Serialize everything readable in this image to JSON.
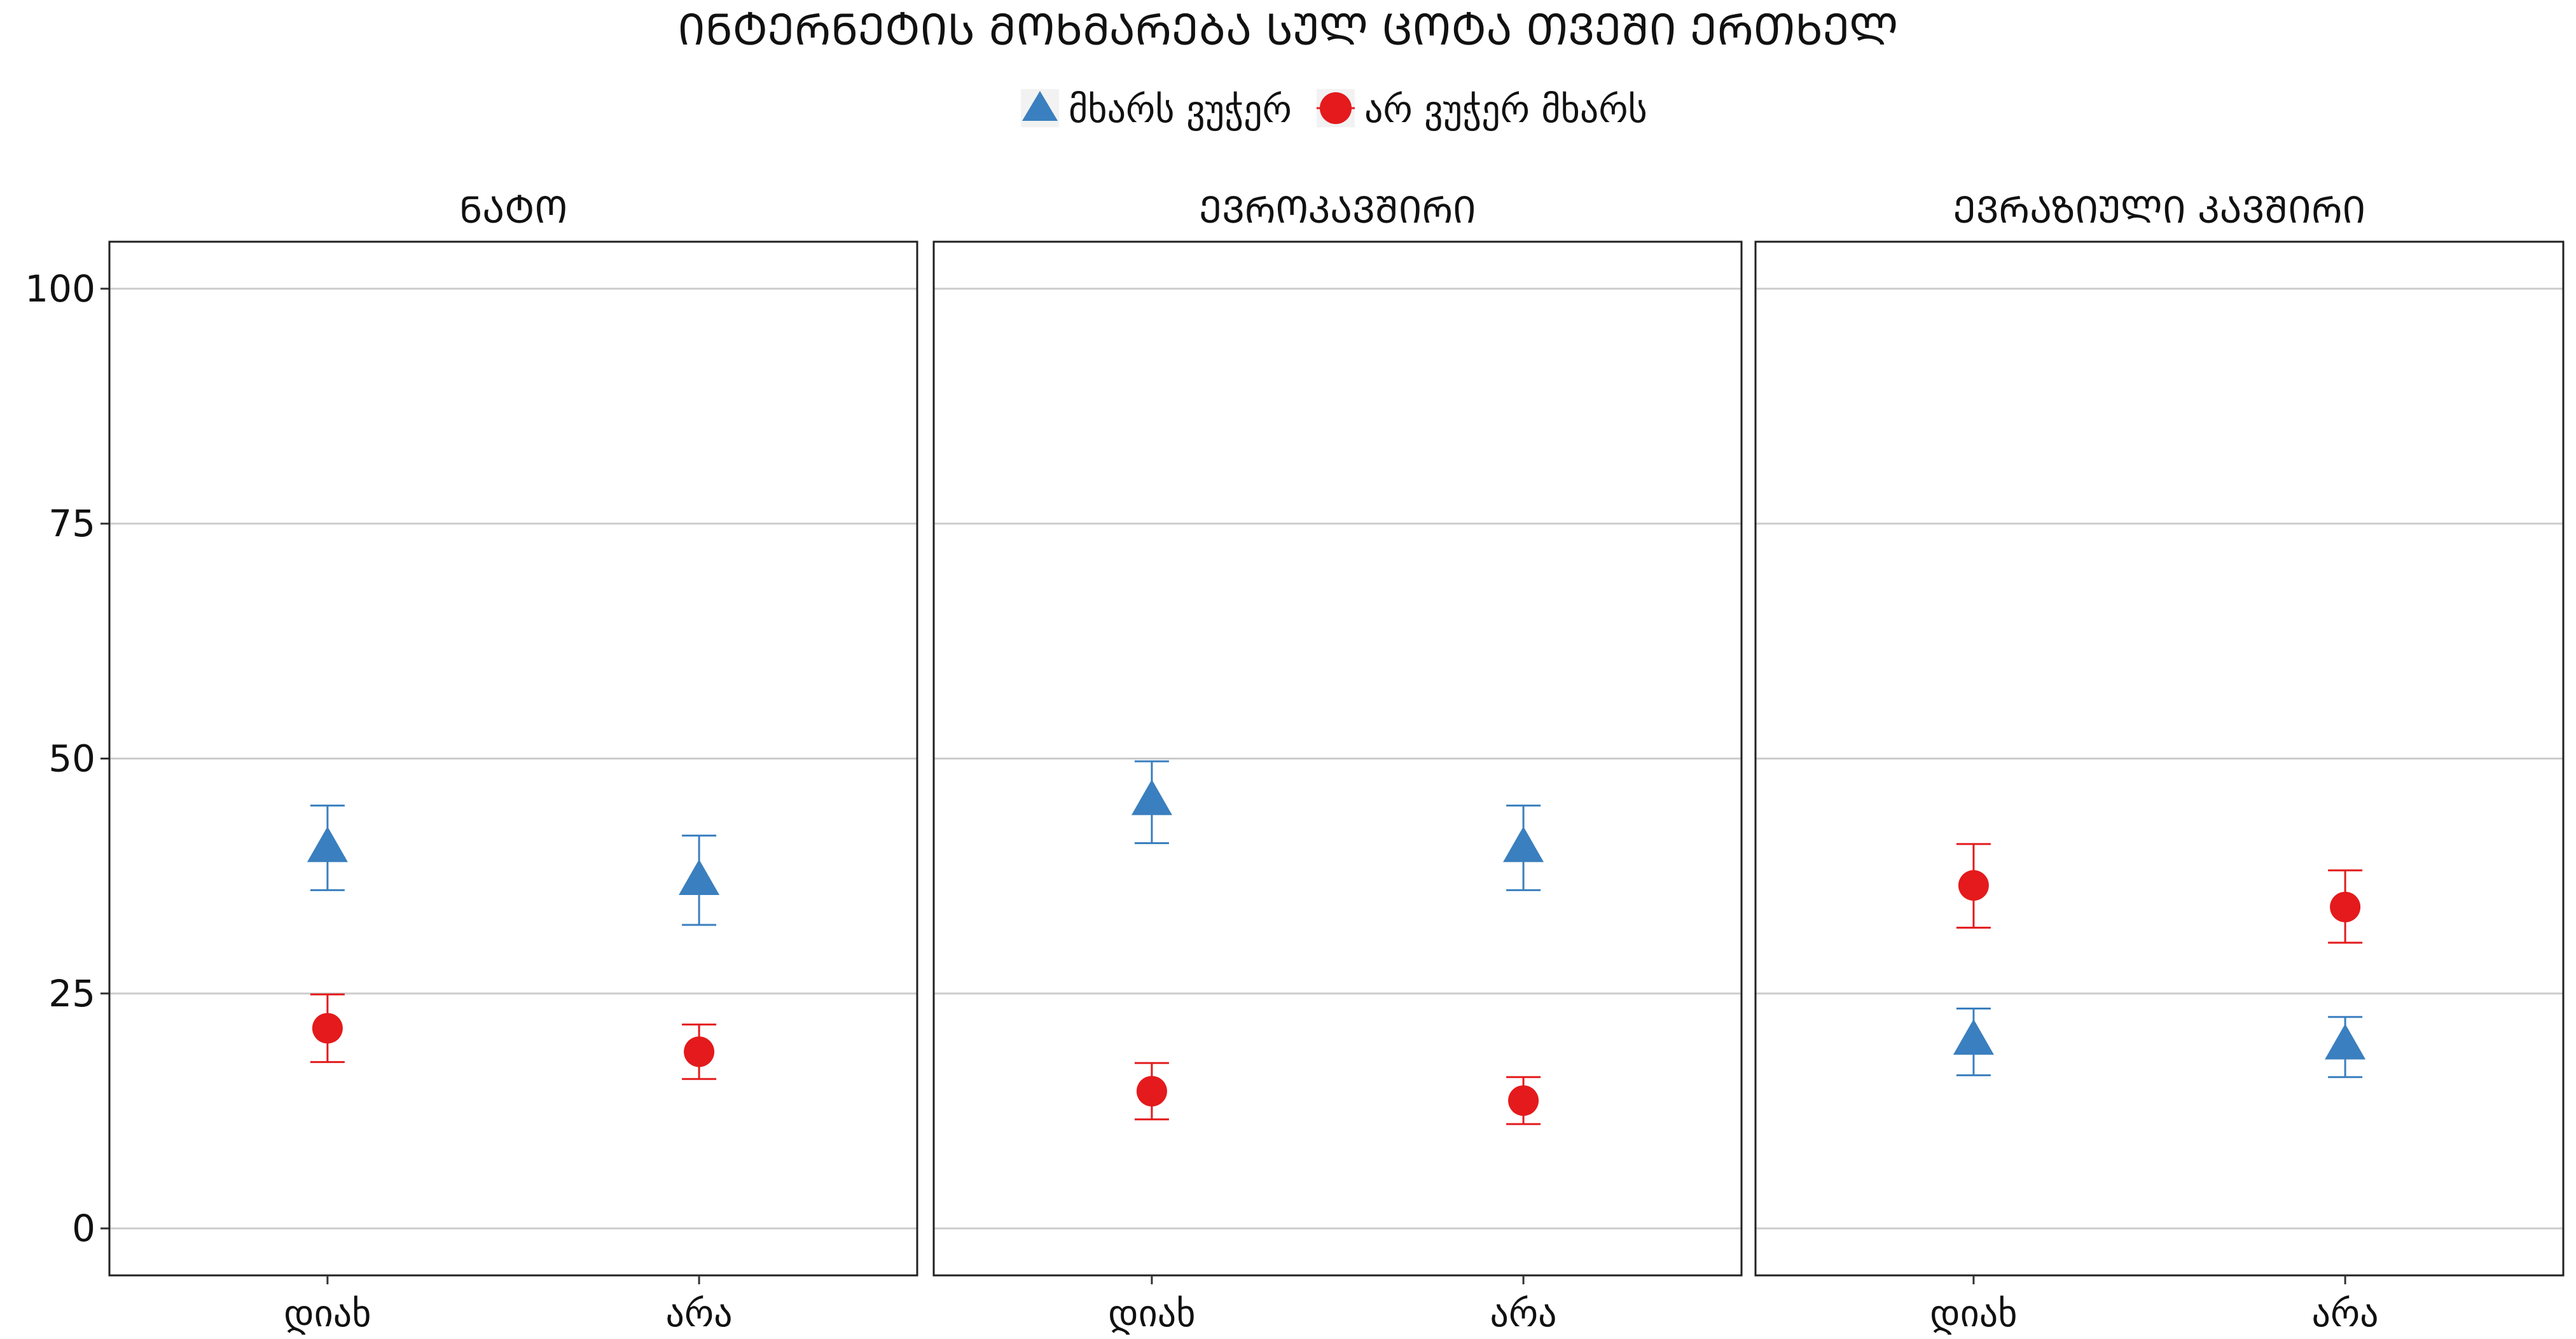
{
  "chart_data": {
    "type": "scatter",
    "title": "ᲘᲜᲢᲔᲠᲜᲔᲢᲘᲡ ᲛᲝᲮᲛᲐᲠᲔᲑᲐ ᲡᲣᲚ ᲪᲝᲢᲐ ᲗᲕᲔᲨᲘ ᲔᲠᲗᲮᲔᲚ",
    "xlabel": "",
    "ylabel": "",
    "ylim": [
      -5,
      105
    ],
    "yticks": [
      0,
      25,
      50,
      75,
      100
    ],
    "categories": [
      "დიახ",
      "არა"
    ],
    "legend_position": "top",
    "grid": "horizontal major",
    "series": [
      {
        "name": "მხარს ვუჭერ",
        "marker": "triangle",
        "color": "#3a7fbf"
      },
      {
        "name": "არ ვუჭერ მხარს",
        "marker": "circle",
        "color": "#e41a1c"
      }
    ],
    "panels": [
      {
        "label": "ᲜᲐᲢᲝ",
        "points": [
          {
            "series": 0,
            "category": "დიახ",
            "y": 40.5,
            "low": 36,
            "high": 45
          },
          {
            "series": 0,
            "category": "არა",
            "y": 37,
            "low": 32.3,
            "high": 41.8
          },
          {
            "series": 1,
            "category": "დიახ",
            "y": 21.3,
            "low": 17.7,
            "high": 24.9
          },
          {
            "series": 1,
            "category": "არა",
            "y": 18.8,
            "low": 15.9,
            "high": 21.7
          }
        ]
      },
      {
        "label": "ᲔᲕᲠᲝᲙᲐᲕᲨᲘᲠᲘ",
        "points": [
          {
            "series": 0,
            "category": "დიახ",
            "y": 45.5,
            "low": 41,
            "high": 49.7
          },
          {
            "series": 0,
            "category": "არა",
            "y": 40.5,
            "low": 36,
            "high": 45
          },
          {
            "series": 1,
            "category": "დიახ",
            "y": 14.6,
            "low": 11.6,
            "high": 17.6
          },
          {
            "series": 1,
            "category": "არა",
            "y": 13.6,
            "low": 11.1,
            "high": 16.1
          }
        ]
      },
      {
        "label": "ᲔᲕᲠᲐᲖᲘᲣᲚᲘ ᲙᲐᲕᲨᲘᲠᲘ",
        "points": [
          {
            "series": 0,
            "category": "დიახ",
            "y": 20,
            "low": 16.3,
            "high": 23.4
          },
          {
            "series": 0,
            "category": "არა",
            "y": 19.5,
            "low": 16.1,
            "high": 22.5
          },
          {
            "series": 1,
            "category": "დიახ",
            "y": 36.5,
            "low": 32,
            "high": 40.9
          },
          {
            "series": 1,
            "category": "არა",
            "y": 34.2,
            "low": 30.4,
            "high": 38.1
          }
        ]
      }
    ]
  }
}
